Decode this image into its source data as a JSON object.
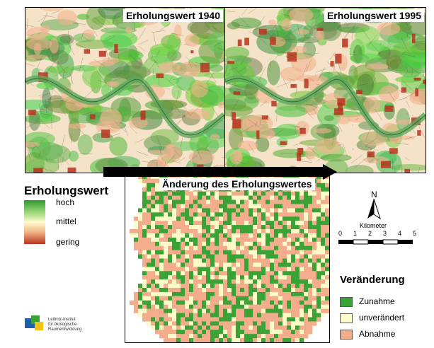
{
  "maps": {
    "map_1940": {
      "title": "Erholungswert 1940"
    },
    "map_1995": {
      "title": "Erholungswert 1995"
    },
    "map_change": {
      "title": "Änderung des Erholungswertes"
    }
  },
  "legend_value": {
    "title": "Erholungswert",
    "high": "hoch",
    "mid": "mittel",
    "low": "gering",
    "colors": {
      "high": "#2e9a2e",
      "mid": "#fffbcc",
      "low": "#b8341f"
    }
  },
  "north_arrow": {
    "label": "N"
  },
  "scale_bar": {
    "unit_label": "Kilometer",
    "ticks": [
      "0",
      "1",
      "2",
      "3",
      "4",
      "5"
    ]
  },
  "legend_change": {
    "title": "Veränderung",
    "items": [
      {
        "label": "Zunahme",
        "color": "#3aa336"
      },
      {
        "label": "unverändert",
        "color": "#fdfbc8"
      },
      {
        "label": "Abnahme",
        "color": "#f4ad8c"
      }
    ]
  },
  "logo": {
    "line1": "Leibniz-Institut",
    "line2": "für ökologische",
    "line3": "Raumentwicklung"
  }
}
